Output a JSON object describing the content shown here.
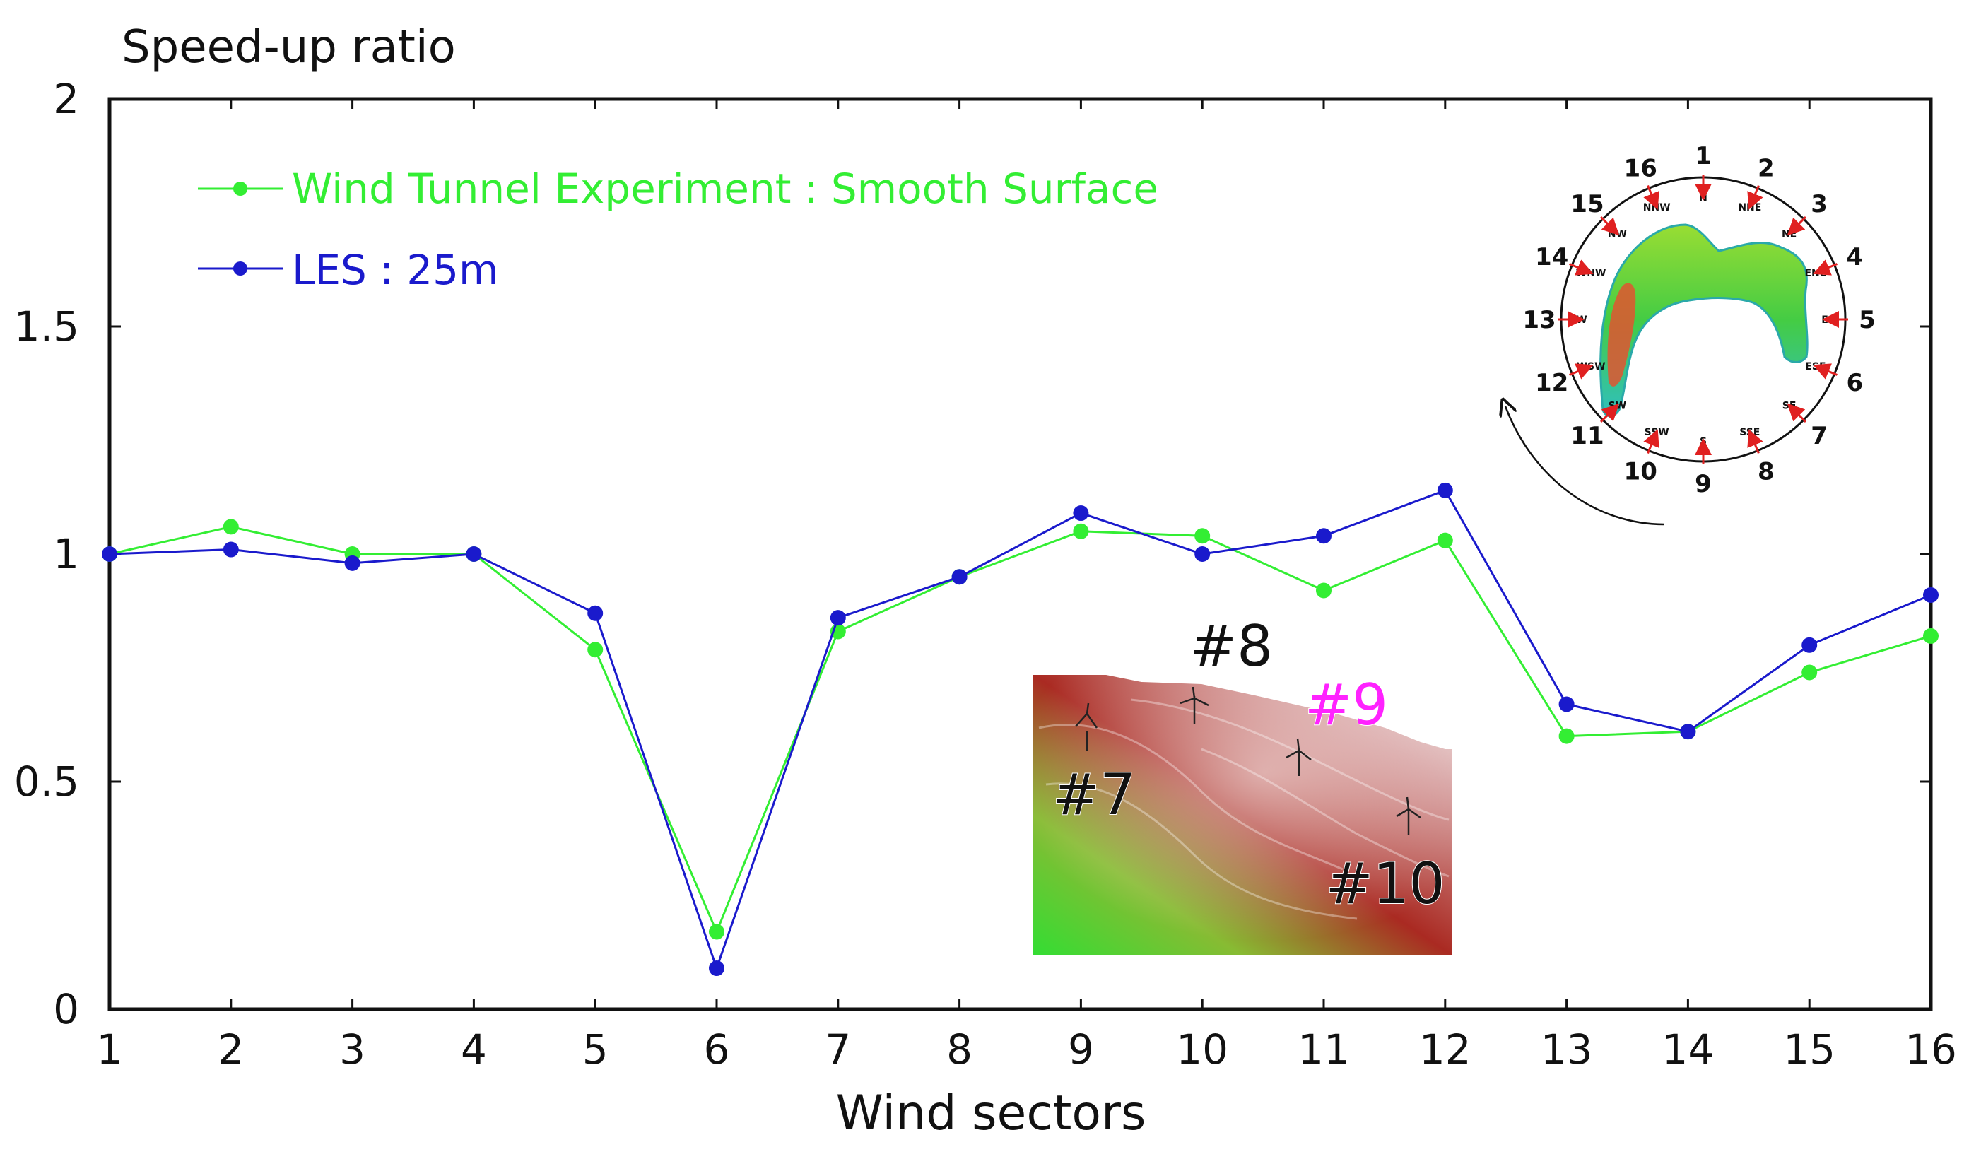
{
  "chart_data": {
    "type": "line",
    "ylabel": "Speed-up ratio",
    "xlabel": "Wind sectors",
    "categories": [
      "1",
      "2",
      "3",
      "4",
      "5",
      "6",
      "7",
      "8",
      "9",
      "10",
      "11",
      "12",
      "13",
      "14",
      "15",
      "16"
    ],
    "y_ticks": [
      "0",
      "0.5",
      "1",
      "1.5",
      "2"
    ],
    "ylim": [
      0,
      2
    ],
    "xlim": [
      1,
      16
    ],
    "grid": false,
    "legend_position": "top-left",
    "series": [
      {
        "name": "Wind Tunnel Experiment : Smooth Surface",
        "color": "#33ee33",
        "values": [
          1.0,
          1.06,
          1.0,
          1.0,
          0.79,
          0.17,
          0.83,
          0.95,
          1.05,
          1.04,
          0.92,
          1.03,
          0.6,
          0.61,
          0.74,
          0.82
        ]
      },
      {
        "name": "LES : 25m",
        "color": "#1a1acc",
        "values": [
          1.0,
          1.01,
          0.98,
          1.0,
          0.87,
          0.09,
          0.86,
          0.95,
          1.09,
          1.0,
          1.04,
          1.14,
          0.67,
          0.61,
          0.8,
          0.91
        ]
      }
    ]
  },
  "terrain_inset": {
    "turbine_labels": [
      {
        "text": "#7",
        "color": "#111111"
      },
      {
        "text": "#8",
        "color": "#111111"
      },
      {
        "text": "#9",
        "color": "#ff22ff"
      },
      {
        "text": "#10",
        "color": "#111111"
      }
    ]
  },
  "compass_inset": {
    "sector_numbers": [
      "1",
      "2",
      "3",
      "4",
      "5",
      "6",
      "7",
      "8",
      "9",
      "10",
      "11",
      "12",
      "13",
      "14",
      "15",
      "16"
    ],
    "directions": [
      "N",
      "NNE",
      "NE",
      "ENE",
      "E",
      "ESE",
      "SE",
      "SSE",
      "S",
      "SSW",
      "SW",
      "WSW",
      "W",
      "WNW",
      "NW",
      "NNW"
    ]
  }
}
